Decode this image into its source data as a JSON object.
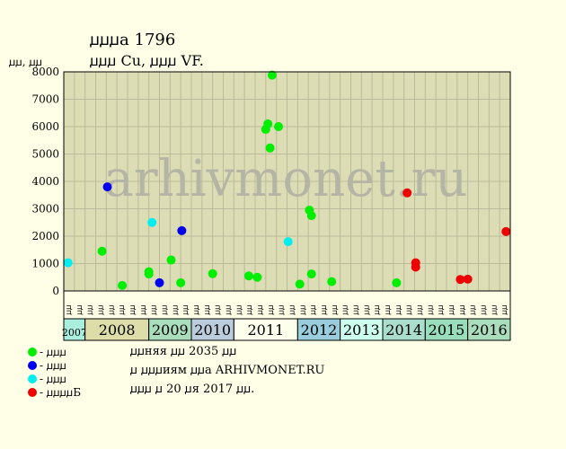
{
  "header": {
    "title": "ꙡꙡꙡа 1796",
    "subtitle": "ꙡꙡꙡ Cu, ꙡꙡꙡ VF.",
    "y_units": "ꙡꙡ, ꙡꙡ"
  },
  "watermark": "arhivmonet.ru",
  "legend": [
    {
      "label": "- ꙡꙡꙡ",
      "color": "#00ee00"
    },
    {
      "label": "- ꙡꙡꙡ",
      "color": "#0000ee"
    },
    {
      "label": "- ꙡꙡꙡ",
      "color": "#00eeee"
    },
    {
      "label": "- ꙡꙡꙡꙡБ",
      "color": "#ee0000"
    }
  ],
  "footer": [
    "ꙡꙡняя ꙡꙡ 2035 ꙡꙡ",
    "ꙡ ꙡꙡꙡиям ꙡꙡа ARHIVMONET.RU",
    "ꙡꙡꙡ ꙡ 20 ꙡя 2017 ꙡꙡ."
  ],
  "chart_data": {
    "type": "scatter",
    "ylim": [
      0,
      8000
    ],
    "yticks": [
      0,
      1000,
      2000,
      3000,
      4000,
      5000,
      6000,
      7000,
      8000
    ],
    "grid": true,
    "quarter_label": "ꙡꙡ",
    "years": [
      {
        "label": "2007",
        "quarters": 2,
        "color": "#aaeedd"
      },
      {
        "label": "2008",
        "quarters": 6,
        "color": "#ddddaa"
      },
      {
        "label": "2009",
        "quarters": 4,
        "color": "#aaddbb"
      },
      {
        "label": "2010",
        "quarters": 4,
        "color": "#bbccdd"
      },
      {
        "label": "2011",
        "quarters": 6,
        "color": "#ffffee"
      },
      {
        "label": "2012",
        "quarters": 4,
        "color": "#99ccdd"
      },
      {
        "label": "2013",
        "quarters": 4,
        "color": "#ccffee"
      },
      {
        "label": "2014",
        "quarters": 4,
        "color": "#aaddcc"
      },
      {
        "label": "2015",
        "quarters": 4,
        "color": "#99ddbb"
      },
      {
        "label": "2016",
        "quarters": 4,
        "color": "#aaddbb"
      }
    ],
    "series": [
      {
        "color": "#00ee00",
        "points": [
          {
            "x": 3.6,
            "y": 1450
          },
          {
            "x": 5.5,
            "y": 200
          },
          {
            "x": 8.0,
            "y": 700
          },
          {
            "x": 8.0,
            "y": 620
          },
          {
            "x": 10.1,
            "y": 1130
          },
          {
            "x": 11.0,
            "y": 300
          },
          {
            "x": 14.0,
            "y": 630
          },
          {
            "x": 17.4,
            "y": 550
          },
          {
            "x": 18.2,
            "y": 500
          },
          {
            "x": 19.0,
            "y": 5900
          },
          {
            "x": 19.2,
            "y": 6100
          },
          {
            "x": 19.4,
            "y": 5220
          },
          {
            "x": 19.6,
            "y": 7880
          },
          {
            "x": 20.2,
            "y": 6000
          },
          {
            "x": 22.2,
            "y": 250
          },
          {
            "x": 23.1,
            "y": 2950
          },
          {
            "x": 23.3,
            "y": 2750
          },
          {
            "x": 23.3,
            "y": 620
          },
          {
            "x": 25.2,
            "y": 340
          },
          {
            "x": 31.3,
            "y": 300
          }
        ]
      },
      {
        "color": "#0000ee",
        "points": [
          {
            "x": 4.1,
            "y": 3800
          },
          {
            "x": 9.0,
            "y": 300
          },
          {
            "x": 11.1,
            "y": 2200
          }
        ]
      },
      {
        "color": "#00eeee",
        "points": [
          {
            "x": 0.4,
            "y": 1030
          },
          {
            "x": 8.3,
            "y": 2500
          },
          {
            "x": 21.1,
            "y": 1800
          }
        ]
      },
      {
        "color": "#ee0000",
        "points": [
          {
            "x": 32.3,
            "y": 3580
          },
          {
            "x": 33.1,
            "y": 1030
          },
          {
            "x": 33.1,
            "y": 870
          },
          {
            "x": 37.3,
            "y": 420
          },
          {
            "x": 38.0,
            "y": 430
          },
          {
            "x": 41.6,
            "y": 2170
          }
        ]
      }
    ]
  }
}
